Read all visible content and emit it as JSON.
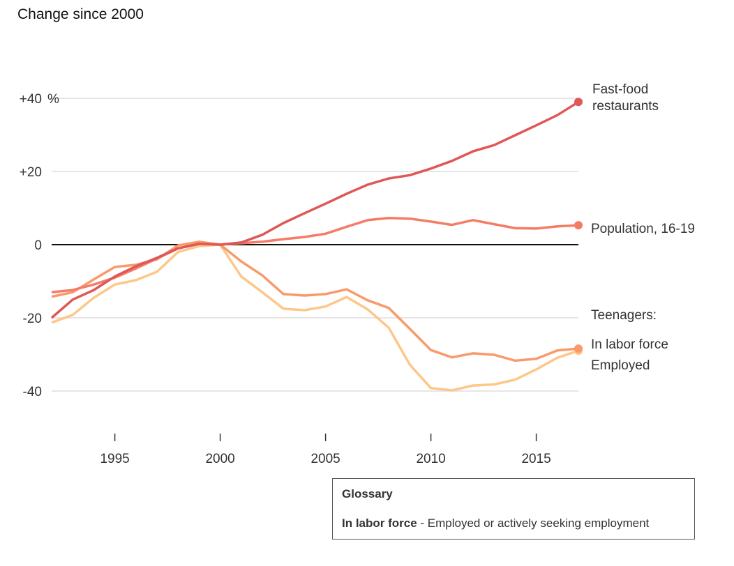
{
  "chart_data": {
    "type": "line",
    "title": "Change since 2000",
    "x": [
      1992,
      1993,
      1994,
      1995,
      1996,
      1997,
      1998,
      1999,
      2000,
      2001,
      2002,
      2003,
      2004,
      2005,
      2006,
      2007,
      2008,
      2009,
      2010,
      2011,
      2012,
      2013,
      2014,
      2015,
      2016,
      2017
    ],
    "xlim": [
      1992,
      2017
    ],
    "ylim": [
      -50,
      50
    ],
    "x_ticks": [
      1995,
      2000,
      2005,
      2010,
      2015
    ],
    "y_ticks": [
      {
        "v": 40,
        "label": "+40",
        "unit": "%"
      },
      {
        "v": 20,
        "label": "+20"
      },
      {
        "v": 0,
        "label": "0"
      },
      {
        "v": -20,
        "label": "-20"
      },
      {
        "v": -40,
        "label": "-40"
      }
    ],
    "grid": true,
    "series": [
      {
        "name": "Fast-food restaurants",
        "label_lines": [
          "Fast-food",
          "restaurants"
        ],
        "color": "#e05757",
        "values": [
          -20,
          -15,
          -12.4,
          -8.7,
          -5.9,
          -3.6,
          -1,
          0.2,
          0,
          0.6,
          2.7,
          5.9,
          8.6,
          11.2,
          13.9,
          16.4,
          18.1,
          19,
          20.8,
          22.9,
          25.5,
          27.2,
          29.9,
          32.6,
          35.4,
          39
        ]
      },
      {
        "name": "Population, 16-19",
        "label_lines": [
          "Population, 16-19"
        ],
        "color": "#f47c66",
        "values": [
          -13,
          -12.4,
          -10.9,
          -9,
          -6.5,
          -3.8,
          -1,
          0.3,
          0,
          0.4,
          0.8,
          1.5,
          2.1,
          3,
          4.9,
          6.7,
          7.3,
          7.1,
          6.3,
          5.4,
          6.7,
          5.6,
          4.5,
          4.4,
          5,
          5.3
        ]
      },
      {
        "name": "In labor force",
        "label_lines": [
          "In labor force"
        ],
        "color": "#f99a6c",
        "values": [
          -14.2,
          -13,
          -9.5,
          -6.1,
          -5.5,
          -4,
          -0.2,
          0.8,
          0,
          -4.6,
          -8.4,
          -13.5,
          -13.9,
          -13.5,
          -12.2,
          -15.2,
          -17.3,
          -23,
          -28.8,
          -30.8,
          -29.7,
          -30.1,
          -31.7,
          -31.2,
          -28.9,
          -28.4
        ]
      },
      {
        "name": "Employed",
        "label_lines": [
          "Employed"
        ],
        "color": "#fdc78a",
        "values": [
          -21.3,
          -19.2,
          -14.5,
          -10.9,
          -9.7,
          -7.4,
          -2,
          -0.4,
          0,
          -8.7,
          -13,
          -17.5,
          -17.9,
          -16.9,
          -14.3,
          -17.7,
          -22.7,
          -32.8,
          -39.2,
          -39.8,
          -38.5,
          -38.2,
          -36.9,
          -34.1,
          -30.9,
          -29
        ]
      }
    ],
    "group_label": "Teenagers:"
  },
  "glossary": {
    "title": "Glossary",
    "term": "In labor force",
    "definition": " - Employed or actively seeking employment"
  }
}
